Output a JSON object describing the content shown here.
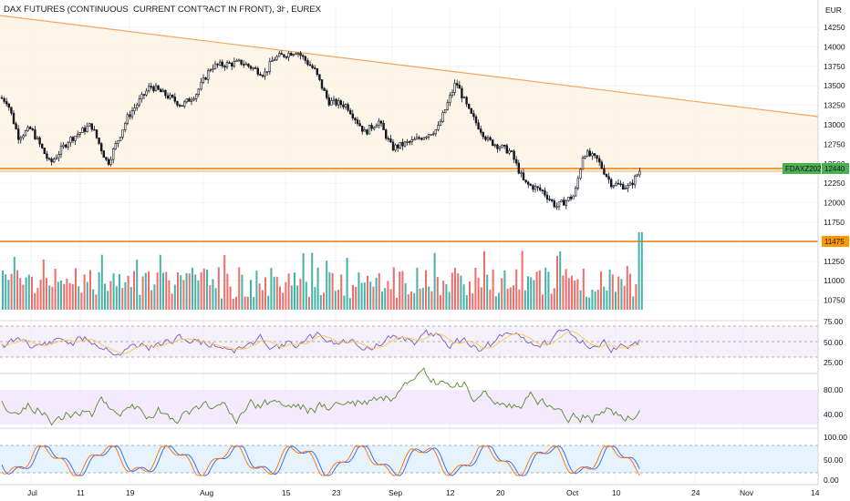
{
  "header": {
    "title": "DAX FUTURES (CONTINUOUS: CURRENT CONTRACT IN FRONT), 3h, EUREX",
    "currency": "EUR"
  },
  "price_axis": {
    "ticks": [
      "14250",
      "14000",
      "13750",
      "13500",
      "13250",
      "13000",
      "12750",
      "12500",
      "12250",
      "12000",
      "11750",
      "11500",
      "11250",
      "11000",
      "10750"
    ]
  },
  "tags": {
    "symbol": "FDAXZ2022",
    "last_price": "12440",
    "level_line": "11475"
  },
  "rsi_axis": {
    "ticks": [
      "75.00",
      "50.00",
      "25.00"
    ]
  },
  "osc2_axis": {
    "ticks": [
      "80.00",
      "40.00"
    ]
  },
  "stoch_axis": {
    "ticks": [
      "100.00",
      "50.00",
      "0.00"
    ]
  },
  "time_axis": {
    "ticks": [
      "Jul",
      "11",
      "19",
      "Aug",
      "15",
      "23",
      "Sep",
      "12",
      "20",
      "Oct",
      "10",
      "24",
      "Nov",
      "14"
    ]
  },
  "colors": {
    "up": "#26a69a",
    "down": "#ef5350",
    "candle": "#131722",
    "trendline": "#f7a35c",
    "level": "#f57c00",
    "zone_fill": "#fdf3e1",
    "rsi_line": "#7e57c2",
    "rsi_ma": "#f9c74f",
    "osc2_line": "#558b2f",
    "osc2_fill": "#f3e5fd",
    "stoch_k": "#2962ff",
    "stoch_d": "#ff6d00",
    "stoch_fill": "#e3f2fd",
    "tag_green": "#4caf50",
    "tag_orange": "#ff9800"
  }
}
